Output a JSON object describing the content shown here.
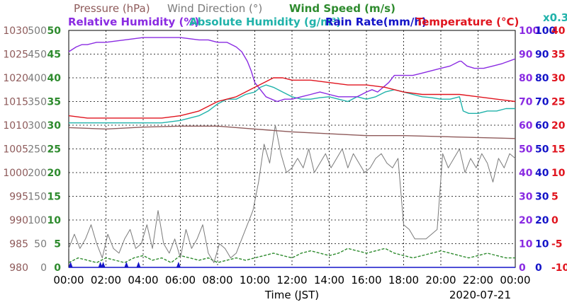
{
  "header": {
    "row1": [
      {
        "text": "Pressure (hPa)",
        "color": "#8e5a5a"
      },
      {
        "text": "Wind Direction (°)",
        "color": "#7a7a7a"
      },
      {
        "text": "Wind Speed (m/s)",
        "color": "#2e8b2e"
      }
    ],
    "row2": [
      {
        "text": "Relative Humidity (%)",
        "color": "#8a2be2"
      },
      {
        "text": "Absolute Humidity (g/m³)",
        "color": "#20b2aa"
      },
      {
        "text": "Rain Rate(mm/h)",
        "color": "#1414c8"
      },
      {
        "text": "Temperature (°C)",
        "color": "#e0141e"
      }
    ],
    "scale_note": "x0.3"
  },
  "axis_labels": {
    "pressure": [
      "980",
      "985",
      "990",
      "995",
      "1000",
      "1005",
      "1010",
      "1015",
      "1020",
      "1025",
      "1030"
    ],
    "wind_dir": [
      "0",
      "50",
      "100",
      "150",
      "200",
      "250",
      "300",
      "350",
      "400",
      "450",
      "500"
    ],
    "wind_speed": [
      "0",
      "5",
      "10",
      "15",
      "20",
      "25",
      "30",
      "35",
      "40",
      "45",
      "50"
    ],
    "humidity": [
      "0",
      "10",
      "20",
      "30",
      "40",
      "50",
      "60",
      "70",
      "80",
      "90",
      "100"
    ],
    "rain": [
      "0",
      "10",
      "20",
      "30",
      "40",
      "50",
      "60",
      "70",
      "80",
      "90",
      "100"
    ],
    "temperature": [
      "-10",
      "-5",
      "0",
      "5",
      "10",
      "15",
      "20",
      "25",
      "30",
      "35",
      "40"
    ],
    "x_ticks": [
      "00:00",
      "02:00",
      "04:00",
      "06:00",
      "08:00",
      "10:00",
      "12:00",
      "14:00",
      "16:00",
      "18:00",
      "20:00",
      "22:00",
      "00:00"
    ],
    "x_title": "Time (JST)",
    "date": "2020-07-21"
  },
  "chart_data": {
    "type": "line",
    "title": "",
    "xlabel": "Time (JST)",
    "date": "2020-07-21",
    "x_range_hours": [
      0,
      24
    ],
    "grid": true,
    "y_axes": [
      {
        "name": "Pressure (hPa)",
        "range": [
          980,
          1030
        ],
        "side": "left"
      },
      {
        "name": "Wind Direction (°)",
        "range": [
          0,
          500
        ],
        "side": "left"
      },
      {
        "name": "Wind Speed (m/s)",
        "range": [
          0,
          50
        ],
        "side": "left"
      },
      {
        "name": "Relative Humidity (%)",
        "range": [
          0,
          100
        ],
        "side": "right"
      },
      {
        "name": "Rain Rate(mm/h)",
        "range": [
          0,
          100
        ],
        "side": "right"
      },
      {
        "name": "Temperature (°C)",
        "range": [
          -10,
          40
        ],
        "side": "right"
      }
    ],
    "series": [
      {
        "name": "Relative Humidity (%)",
        "color": "#8a2be2",
        "axis": "humidity",
        "x": [
          0,
          0.4,
          0.7,
          1.0,
          1.5,
          2.0,
          3.0,
          4.0,
          5.0,
          6.0,
          7.0,
          7.5,
          8.0,
          8.5,
          9.0,
          9.3,
          9.6,
          9.8,
          10.0,
          10.3,
          10.6,
          10.9,
          11.2,
          11.6,
          12.0,
          12.5,
          13.0,
          13.5,
          14.0,
          14.5,
          15.0,
          15.5,
          16.0,
          16.3,
          16.6,
          16.9,
          17.2,
          17.5,
          18.0,
          18.5,
          19.0,
          19.5,
          20.0,
          20.5,
          21.0,
          21.1,
          21.4,
          21.8,
          22.3,
          22.8,
          23.3,
          24.0
        ],
        "y": [
          91,
          93,
          94,
          94,
          95,
          95,
          96,
          97,
          97,
          97,
          96,
          96,
          95,
          95,
          93,
          91,
          87,
          83,
          78,
          75,
          72,
          71,
          70,
          71,
          71,
          72,
          73,
          74,
          73,
          72,
          72,
          72,
          74,
          75,
          74,
          76,
          78,
          81,
          81,
          81,
          82,
          83,
          84,
          85,
          87,
          87,
          85,
          84,
          84,
          85,
          86,
          88
        ]
      },
      {
        "name": "Temperature (°C)",
        "color": "#e0141e",
        "axis": "temperature",
        "x": [
          0,
          1,
          2,
          3,
          4,
          5,
          6,
          6.5,
          7,
          7.5,
          8,
          8.5,
          9,
          9.5,
          10,
          10.5,
          11,
          11.5,
          12,
          13,
          14,
          15,
          16,
          17,
          18,
          19,
          20,
          21,
          22,
          23,
          24
        ],
        "y": [
          22,
          21.5,
          21.5,
          21.5,
          21.5,
          21.5,
          22,
          22.5,
          23,
          24,
          25,
          25.5,
          26,
          27,
          28,
          29,
          30,
          30,
          29.5,
          29.5,
          29,
          28.5,
          28.5,
          28,
          27,
          26.5,
          26.5,
          26.5,
          26,
          25.5,
          25
        ]
      },
      {
        "name": "Absolute Humidity (g/m³)",
        "color": "#20b2aa",
        "axis": "temperature",
        "x": [
          0,
          1,
          2,
          3,
          4,
          5,
          6,
          6.5,
          7,
          7.5,
          8,
          8.5,
          9,
          9.5,
          10,
          10.3,
          10.6,
          11,
          11.5,
          12,
          12.5,
          13,
          13.5,
          14,
          14.5,
          15,
          15.5,
          16,
          16.5,
          17,
          17.5,
          18,
          18.5,
          19,
          19.5,
          20,
          20.5,
          21,
          21.2,
          21.5,
          22,
          22.5,
          23,
          23.5,
          24
        ],
        "y": [
          20.5,
          20.5,
          20.5,
          20.5,
          20.5,
          20.5,
          21,
          21.5,
          22,
          23,
          24.5,
          25.5,
          25.5,
          26.5,
          27,
          28,
          28.5,
          28,
          27,
          26,
          25.5,
          25.5,
          25.8,
          26,
          25.5,
          25,
          26,
          25.5,
          26,
          27,
          27.5,
          27,
          26.5,
          26,
          25.8,
          25.5,
          25.5,
          26,
          23,
          22.5,
          22.5,
          23,
          23,
          23.5,
          23.5
        ]
      },
      {
        "name": "Pressure (hPa)",
        "color": "#8e5a5a",
        "axis": "pressure",
        "x": [
          0,
          2,
          4,
          6,
          8,
          10,
          12,
          14,
          16,
          18,
          20,
          22,
          24
        ],
        "y": [
          1009.5,
          1009.2,
          1009.6,
          1009.8,
          1009.8,
          1009.2,
          1008.6,
          1008.2,
          1007.8,
          1007.8,
          1007.6,
          1007.4,
          1007.2
        ]
      },
      {
        "name": "Wind Direction (°)",
        "color": "#7a7a7a",
        "axis": "wind_dir",
        "x": [
          0,
          0.3,
          0.6,
          0.9,
          1.2,
          1.5,
          1.8,
          2.1,
          2.4,
          2.7,
          3.0,
          3.3,
          3.6,
          3.9,
          4.2,
          4.5,
          4.8,
          5.1,
          5.4,
          5.7,
          6.0,
          6.3,
          6.6,
          6.9,
          7.2,
          7.5,
          7.8,
          8.1,
          8.4,
          8.7,
          9.0,
          9.3,
          9.6,
          9.9,
          10.2,
          10.5,
          10.8,
          11.1,
          11.4,
          11.7,
          12.0,
          12.3,
          12.6,
          12.9,
          13.2,
          13.5,
          13.8,
          14.1,
          14.4,
          14.7,
          15.0,
          15.3,
          15.6,
          15.9,
          16.2,
          16.5,
          16.8,
          17.1,
          17.4,
          17.7,
          18.0,
          18.3,
          18.6,
          18.9,
          19.2,
          19.5,
          19.8,
          20.1,
          20.4,
          20.7,
          21.0,
          21.3,
          21.6,
          21.9,
          22.2,
          22.5,
          22.8,
          23.1,
          23.4,
          23.7,
          24.0
        ],
        "y": [
          40,
          70,
          40,
          60,
          90,
          50,
          20,
          70,
          40,
          30,
          60,
          80,
          40,
          50,
          90,
          40,
          120,
          50,
          30,
          60,
          20,
          80,
          40,
          60,
          90,
          30,
          10,
          50,
          40,
          20,
          30,
          60,
          90,
          120,
          180,
          260,
          220,
          300,
          240,
          200,
          210,
          230,
          210,
          250,
          200,
          220,
          240,
          210,
          230,
          250,
          210,
          240,
          220,
          200,
          210,
          230,
          240,
          220,
          210,
          230,
          90,
          80,
          60,
          60,
          60,
          70,
          80,
          240,
          210,
          230,
          250,
          200,
          230,
          210,
          240,
          220,
          180,
          230,
          210,
          240,
          230
        ]
      },
      {
        "name": "Wind Speed (m/s)",
        "color": "#2e8b2e",
        "axis": "wind_speed",
        "x": [
          0,
          0.5,
          1,
          1.5,
          2,
          2.5,
          3,
          3.5,
          4,
          4.5,
          5,
          5.5,
          6,
          6.5,
          7,
          7.5,
          8,
          8.5,
          9,
          9.5,
          10,
          10.5,
          11,
          11.5,
          12,
          12.5,
          13,
          13.5,
          14,
          14.5,
          15,
          15.5,
          16,
          16.5,
          17,
          17.5,
          18,
          18.5,
          19,
          19.5,
          20,
          20.5,
          21,
          21.5,
          22,
          22.5,
          23,
          23.5,
          24
        ],
        "y": [
          1,
          2,
          1.5,
          1,
          2,
          1.5,
          1,
          2,
          2.5,
          1.5,
          2,
          1,
          2.5,
          2,
          1.5,
          2,
          1,
          1.5,
          2,
          1.5,
          2,
          2.5,
          3,
          2.5,
          2,
          3,
          3.5,
          3,
          2.5,
          3,
          4,
          3.5,
          3,
          3.5,
          4,
          3,
          2.5,
          2,
          2.5,
          3,
          3.5,
          3,
          2.5,
          2,
          2.5,
          3,
          2.5,
          2,
          2
        ]
      },
      {
        "name": "Rain Rate(mm/h)",
        "color": "#1414c8",
        "axis": "rain",
        "x": [
          0,
          24
        ],
        "y": [
          0,
          0
        ]
      }
    ]
  }
}
